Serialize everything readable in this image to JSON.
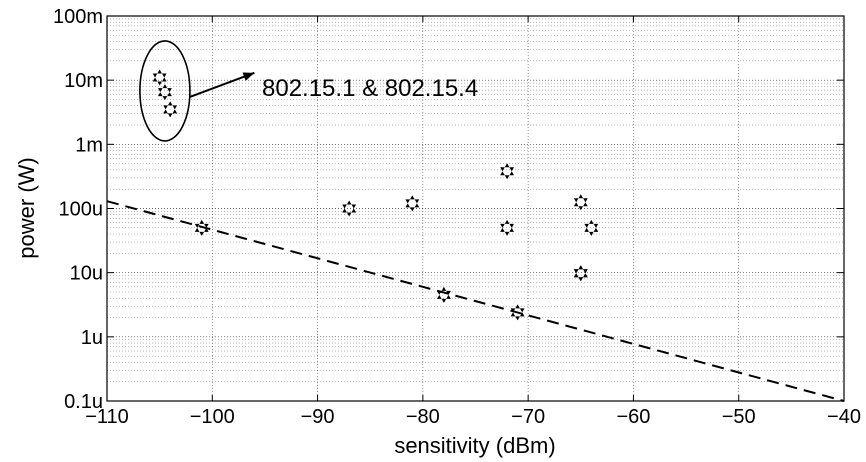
{
  "chart_data": {
    "type": "scatter",
    "title": "",
    "xlabel": "sensitivity (dBm)",
    "ylabel": "power (W)",
    "xlim": [
      -110,
      -40
    ],
    "ylim": [
      0.0001,
      100
    ],
    "y_scale": "log",
    "y_units": "mW",
    "grid": true,
    "x_ticks": [
      -110,
      -100,
      -90,
      -80,
      -70,
      -60,
      -50,
      -40
    ],
    "x_tick_labels": [
      "−110",
      "−100",
      "−90",
      "−80",
      "−70",
      "−60",
      "−50",
      "−40"
    ],
    "y_ticks": [
      0.0001,
      0.001,
      0.01,
      0.1,
      1,
      10,
      100
    ],
    "y_tick_labels": [
      "0.1u",
      "1u",
      "10u",
      "100u",
      "1m",
      "10m",
      "100m"
    ],
    "series": [
      {
        "marker": "star",
        "x": [
          -105,
          -104.5,
          -104,
          -101,
          -87,
          -81,
          -78,
          -72,
          -72,
          -71,
          -65,
          -65,
          -65,
          -64
        ],
        "y": [
          11,
          6.5,
          3.5,
          0.05,
          0.1,
          0.12,
          0.0045,
          0.38,
          0.05,
          0.0024,
          0.125,
          0.0098,
          0.0098,
          0.05
        ]
      }
    ],
    "trend_line": {
      "style": "dashed",
      "x": [
        -110,
        -40
      ],
      "y": [
        0.13,
        0.0001
      ]
    },
    "annotations": [
      {
        "text": "802.15.1 & 802.15.4",
        "ellipse_center": [
          -104.5,
          6.8
        ],
        "arrow_to": [
          -96,
          13
        ]
      }
    ]
  }
}
